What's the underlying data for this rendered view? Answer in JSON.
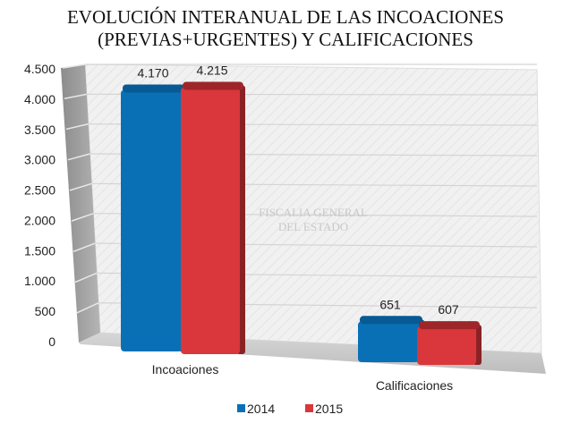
{
  "title_line1": "EVOLUCIÓN INTERANUAL DE LAS INCOACIONES",
  "title_line2": "(PREVIAS+URGENTES) Y CALIFICACIONES",
  "watermark": [
    "FISCALIA GENERAL",
    "DEL ESTADO"
  ],
  "chart_data": {
    "type": "bar",
    "title": "EVOLUCIÓN INTERANUAL DE LAS INCOACIONES (PREVIAS+URGENTES) Y CALIFICACIONES",
    "categories": [
      "Incoaciones",
      "Calificaciones"
    ],
    "series": [
      {
        "name": "2014",
        "values": [
          4170,
          651
        ],
        "labels": [
          "4.170",
          "651"
        ],
        "color": "#0a70b5"
      },
      {
        "name": "2015",
        "values": [
          4215,
          607
        ],
        "labels": [
          "4.215",
          "607"
        ],
        "color": "#d9373b"
      }
    ],
    "yticks": [
      0,
      500,
      1000,
      1500,
      2000,
      2500,
      3000,
      3500,
      4000,
      4500
    ],
    "ytick_labels": [
      "0",
      "500",
      "1.000",
      "1.500",
      "2.000",
      "2.500",
      "3.000",
      "3.500",
      "4.000",
      "4.500"
    ],
    "ylim": [
      0,
      4500
    ],
    "xlabel": "",
    "ylabel": "",
    "grid": true,
    "legend": "bottom"
  }
}
